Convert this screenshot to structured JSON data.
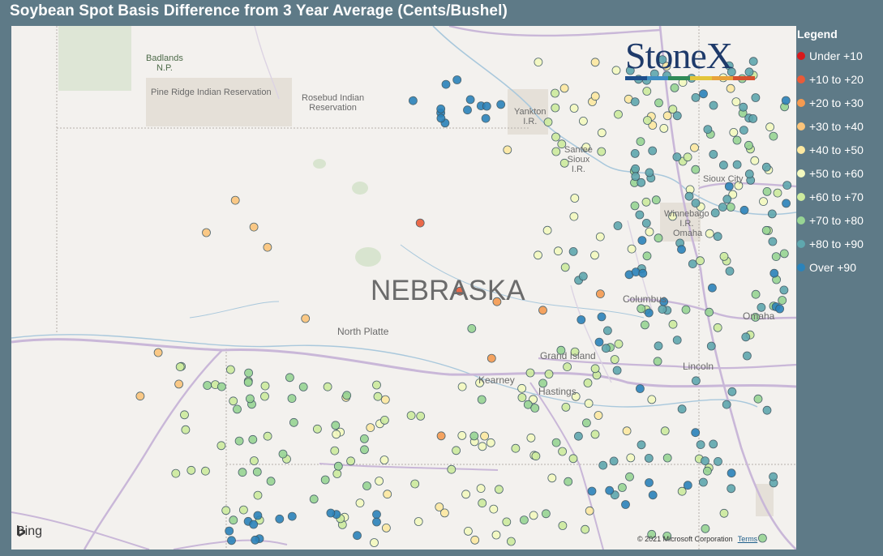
{
  "title": "Soybean Spot Basis Difference from 3 Year Average (Cents/Bushel)",
  "map": {
    "state_label": "NEBRASKA",
    "places": [
      {
        "name": "Badlands\nN.P.",
        "kind": "park"
      },
      {
        "name": "Pine Ridge Indian Reservation",
        "kind": "reservation"
      },
      {
        "name": "Rosebud Indian\nReservation",
        "kind": "reservation"
      },
      {
        "name": "Yankton\nI.R.",
        "kind": "reservation"
      },
      {
        "name": "Santee\nSioux\nI.R.",
        "kind": "reservation"
      },
      {
        "name": "Sioux City",
        "kind": "city"
      },
      {
        "name": "Winnebago\nI.R.",
        "kind": "reservation"
      },
      {
        "name": "Omaha",
        "kind": "reservation"
      },
      {
        "name": "Columbus",
        "kind": "city"
      },
      {
        "name": "Omaha",
        "kind": "city"
      },
      {
        "name": "North Platte",
        "kind": "city"
      },
      {
        "name": "Grand Island",
        "kind": "city"
      },
      {
        "name": "Kearney",
        "kind": "city"
      },
      {
        "name": "Hastings",
        "kind": "city"
      },
      {
        "name": "Lincoln",
        "kind": "city"
      }
    ],
    "provider": "Bing",
    "copyright": "© 2021 Microsoft Corporation",
    "terms_link": "Terms"
  },
  "logo": {
    "text": "StoneX",
    "bar_colors": [
      "#1e4f8c",
      "#3f8fc4",
      "#2f8a57",
      "#e3c53a",
      "#e8a23a",
      "#d6512f"
    ]
  },
  "legend": {
    "title": "Legend",
    "items": [
      {
        "label": "Under +10",
        "color": "#d7191c"
      },
      {
        "label": "+10 to +20",
        "color": "#ea5b38"
      },
      {
        "label": "+20 to +30",
        "color": "#f59a50"
      },
      {
        "label": "+30 to +40",
        "color": "#fbc47a"
      },
      {
        "label": "+40 to +50",
        "color": "#fde9a1"
      },
      {
        "label": "+50 to +60",
        "color": "#f3f9bf"
      },
      {
        "label": "+60 to +70",
        "color": "#cdeb9e"
      },
      {
        "label": "+70 to +80",
        "color": "#98d594"
      },
      {
        "label": "+80 to +90",
        "color": "#5fa7ae"
      },
      {
        "label": "Over +90",
        "color": "#2b83ba"
      }
    ]
  },
  "points_by_class": [
    {
      "class": "Under +10",
      "count": 0
    },
    {
      "class": "+10 to +20",
      "count": 2
    },
    {
      "class": "+20 to +30",
      "count": 5
    },
    {
      "class": "+30 to +40",
      "count": 8
    },
    {
      "class": "+40 to +50",
      "count": 24
    },
    {
      "class": "+50 to +60",
      "count": 60
    },
    {
      "class": "+60 to +70",
      "count": 90
    },
    {
      "class": "+70 to +80",
      "count": 80
    },
    {
      "class": "+80 to +90",
      "count": 85
    },
    {
      "class": "Over +90",
      "count": 55
    }
  ]
}
